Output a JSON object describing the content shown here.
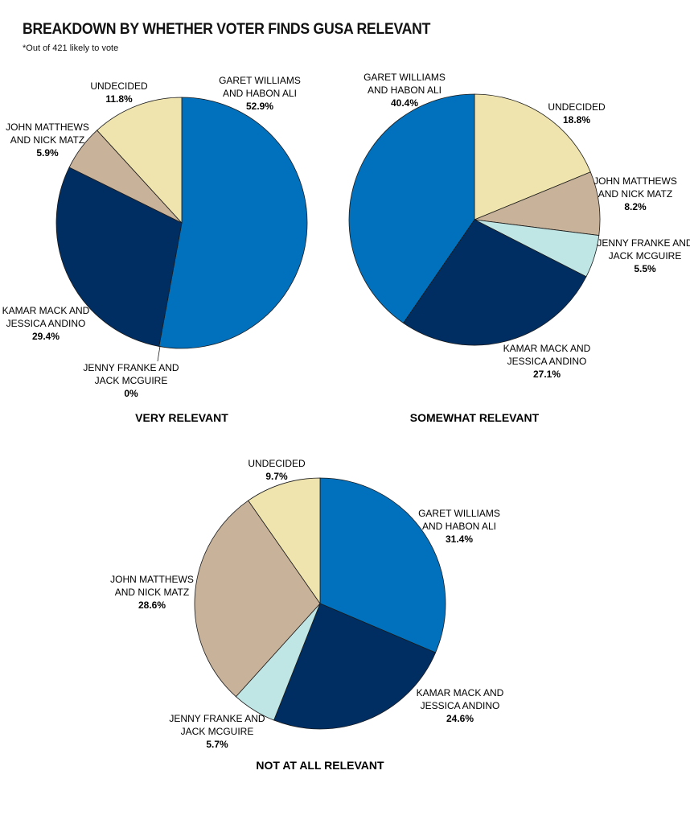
{
  "title": "BREAKDOWN BY WHETHER VOTER FINDS GUSA RELEVANT",
  "subtitle": "*Out of 421 likely to vote",
  "colors": {
    "GARET WILLIAMS AND HABON ALI": "#0271bd",
    "KAMAR MACK AND JESSICA ANDINO": "#002e63",
    "JENNY FRANKE AND JACK MCGUIRE": "#bfe5e5",
    "JOHN MATTHEWS AND NICK MATZ": "#c8b29a",
    "UNDECIDED": "#efe4ad"
  },
  "chart_data": [
    {
      "type": "pie",
      "title": "VERY RELEVANT",
      "slices": [
        {
          "label": [
            "GARET WILLIAMS",
            "AND HABON ALI"
          ],
          "value": 52.9,
          "display": "52.9%"
        },
        {
          "label": [
            "JENNY FRANKE AND",
            "JACK MCGUIRE"
          ],
          "value": 0,
          "display": "0%"
        },
        {
          "label": [
            "KAMAR MACK AND",
            "JESSICA ANDINO"
          ],
          "value": 29.4,
          "display": "29.4%"
        },
        {
          "label": [
            "JOHN MATTHEWS",
            "AND NICK MATZ"
          ],
          "value": 5.9,
          "display": "5.9%"
        },
        {
          "label": [
            "UNDECIDED"
          ],
          "value": 11.8,
          "display": "11.8%"
        }
      ]
    },
    {
      "type": "pie",
      "title": "SOMEWHAT RELEVANT",
      "slices": [
        {
          "label": [
            "UNDECIDED"
          ],
          "value": 18.8,
          "display": "18.8%"
        },
        {
          "label": [
            "JOHN MATTHEWS",
            "AND NICK MATZ"
          ],
          "value": 8.2,
          "display": "8.2%"
        },
        {
          "label": [
            "JENNY FRANKE AND",
            "JACK MCGUIRE"
          ],
          "value": 5.5,
          "display": "5.5%"
        },
        {
          "label": [
            "KAMAR MACK AND",
            "JESSICA ANDINO"
          ],
          "value": 27.1,
          "display": "27.1%"
        },
        {
          "label": [
            "GARET WILLIAMS",
            "AND HABON ALI"
          ],
          "value": 40.4,
          "display": "40.4%"
        }
      ]
    },
    {
      "type": "pie",
      "title": "NOT AT ALL RELEVANT",
      "slices": [
        {
          "label": [
            "GARET WILLIAMS",
            "AND HABON ALI"
          ],
          "value": 31.4,
          "display": "31.4%"
        },
        {
          "label": [
            "KAMAR MACK AND",
            "JESSICA ANDINO"
          ],
          "value": 24.6,
          "display": "24.6%"
        },
        {
          "label": [
            "JENNY FRANKE AND",
            "JACK MCGUIRE"
          ],
          "value": 5.7,
          "display": "5.7%"
        },
        {
          "label": [
            "JOHN MATTHEWS",
            "AND NICK MATZ"
          ],
          "value": 28.6,
          "display": "28.6%"
        },
        {
          "label": [
            "UNDECIDED"
          ],
          "value": 9.7,
          "display": "9.7%"
        }
      ]
    }
  ]
}
